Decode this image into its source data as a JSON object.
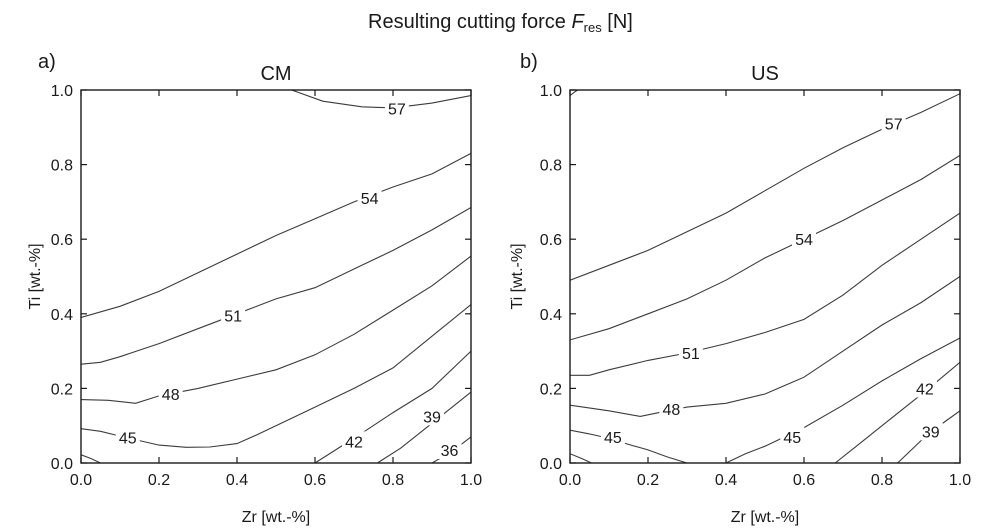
{
  "figure": {
    "title_main": "Resulting cutting force ",
    "title_symbol": "F",
    "title_subscript": "res",
    "title_unit": " [N]"
  },
  "chart_data": [
    {
      "type": "contour",
      "panel_letter": "a)",
      "title": "CM",
      "xlabel": "Zr [wt.-%]",
      "ylabel": "Ti [wt.-%]",
      "xlim": [
        0,
        1
      ],
      "ylim": [
        0,
        1
      ],
      "xticks": [
        "0.0",
        "0.2",
        "0.4",
        "0.6",
        "0.8",
        "1.0"
      ],
      "yticks": [
        "0.0",
        "0.2",
        "0.4",
        "0.6",
        "0.8",
        "1.0"
      ],
      "grid": false,
      "contours": [
        {
          "level": 57,
          "label": "57",
          "label_at": [
            0.81,
            0.95
          ],
          "points": [
            [
              0.54,
              1.0
            ],
            [
              0.62,
              0.97
            ],
            [
              0.72,
              0.955
            ],
            [
              0.8,
              0.952
            ],
            [
              0.9,
              0.965
            ],
            [
              1.0,
              0.985
            ]
          ]
        },
        {
          "level": 54,
          "label": "54",
          "label_at": [
            0.74,
            0.71
          ],
          "points": [
            [
              0.0,
              0.39
            ],
            [
              0.1,
              0.42
            ],
            [
              0.2,
              0.46
            ],
            [
              0.3,
              0.51
            ],
            [
              0.4,
              0.56
            ],
            [
              0.5,
              0.61
            ],
            [
              0.6,
              0.655
            ],
            [
              0.7,
              0.7
            ],
            [
              0.8,
              0.74
            ],
            [
              0.9,
              0.775
            ],
            [
              1.0,
              0.83
            ]
          ]
        },
        {
          "level": 51,
          "label": "51",
          "label_at": [
            0.39,
            0.395
          ],
          "points": [
            [
              0.0,
              0.265
            ],
            [
              0.05,
              0.27
            ],
            [
              0.1,
              0.285
            ],
            [
              0.2,
              0.32
            ],
            [
              0.3,
              0.36
            ],
            [
              0.4,
              0.4
            ],
            [
              0.5,
              0.44
            ],
            [
              0.6,
              0.47
            ],
            [
              0.7,
              0.52
            ],
            [
              0.8,
              0.57
            ],
            [
              0.9,
              0.625
            ],
            [
              1.0,
              0.685
            ]
          ]
        },
        {
          "level": 48,
          "label": "48",
          "label_at": [
            0.23,
            0.185
          ],
          "points": [
            [
              0.0,
              0.17
            ],
            [
              0.07,
              0.168
            ],
            [
              0.14,
              0.16
            ],
            [
              0.2,
              0.18
            ],
            [
              0.3,
              0.2
            ],
            [
              0.4,
              0.225
            ],
            [
              0.5,
              0.25
            ],
            [
              0.6,
              0.29
            ],
            [
              0.7,
              0.345
            ],
            [
              0.8,
              0.41
            ],
            [
              0.9,
              0.475
            ],
            [
              1.0,
              0.555
            ]
          ]
        },
        {
          "level": 45,
          "label": "45",
          "label_at": [
            0.12,
            0.068
          ],
          "points": [
            [
              0.0,
              0.092
            ],
            [
              0.05,
              0.085
            ],
            [
              0.1,
              0.072
            ],
            [
              0.15,
              0.06
            ],
            [
              0.2,
              0.048
            ],
            [
              0.27,
              0.042
            ],
            [
              0.33,
              0.043
            ],
            [
              0.4,
              0.052
            ],
            [
              0.45,
              0.075
            ],
            [
              0.52,
              0.11
            ],
            [
              0.6,
              0.15
            ],
            [
              0.7,
              0.2
            ],
            [
              0.8,
              0.255
            ],
            [
              0.9,
              0.34
            ],
            [
              1.0,
              0.425
            ]
          ]
        },
        {
          "level": 42,
          "label": "42",
          "label_at": [
            0.7,
            0.058
          ],
          "points": [
            [
              0.6,
              0.0
            ],
            [
              0.66,
              0.04
            ],
            [
              0.72,
              0.08
            ],
            [
              0.8,
              0.135
            ],
            [
              0.9,
              0.2
            ],
            [
              1.0,
              0.3
            ]
          ]
        },
        {
          "level": 39,
          "label": "39",
          "label_at": [
            0.9,
            0.125
          ],
          "points": [
            [
              0.76,
              0.0
            ],
            [
              0.82,
              0.04
            ],
            [
              0.88,
              0.09
            ],
            [
              0.94,
              0.14
            ],
            [
              1.0,
              0.19
            ]
          ]
        },
        {
          "level": 36,
          "label": "36",
          "label_at": [
            0.945,
            0.035
          ],
          "points": [
            [
              0.9,
              0.0
            ],
            [
              0.95,
              0.03
            ],
            [
              1.0,
              0.07
            ]
          ]
        },
        {
          "level": 42,
          "label": "",
          "points": [
            [
              0.0,
              0.022
            ],
            [
              0.025,
              0.012
            ],
            [
              0.05,
              0.0
            ]
          ]
        }
      ]
    },
    {
      "type": "contour",
      "panel_letter": "b)",
      "title": "US",
      "xlabel": "Zr [wt.-%]",
      "ylabel": "Ti [wt.-%]",
      "xlim": [
        0,
        1
      ],
      "ylim": [
        0,
        1
      ],
      "xticks": [
        "0.0",
        "0.2",
        "0.4",
        "0.6",
        "0.8",
        "1.0"
      ],
      "yticks": [
        "0.0",
        "0.2",
        "0.4",
        "0.6",
        "0.8",
        "1.0"
      ],
      "grid": false,
      "contours": [
        {
          "level": 57,
          "label": "57",
          "label_at": [
            0.83,
            0.91
          ],
          "points": [
            [
              0.0,
              0.49
            ],
            [
              0.1,
              0.53
            ],
            [
              0.2,
              0.57
            ],
            [
              0.3,
              0.62
            ],
            [
              0.4,
              0.67
            ],
            [
              0.5,
              0.73
            ],
            [
              0.6,
              0.79
            ],
            [
              0.7,
              0.845
            ],
            [
              0.8,
              0.895
            ],
            [
              0.9,
              0.94
            ],
            [
              1.0,
              0.99
            ]
          ]
        },
        {
          "level": 54,
          "label": "54",
          "label_at": [
            0.6,
            0.6
          ],
          "points": [
            [
              0.0,
              0.33
            ],
            [
              0.1,
              0.36
            ],
            [
              0.2,
              0.4
            ],
            [
              0.3,
              0.44
            ],
            [
              0.4,
              0.49
            ],
            [
              0.5,
              0.55
            ],
            [
              0.6,
              0.6
            ],
            [
              0.7,
              0.65
            ],
            [
              0.8,
              0.705
            ],
            [
              0.9,
              0.76
            ],
            [
              1.0,
              0.825
            ]
          ]
        },
        {
          "level": 51,
          "label": "51",
          "label_at": [
            0.31,
            0.295
          ],
          "points": [
            [
              0.0,
              0.235
            ],
            [
              0.05,
              0.235
            ],
            [
              0.1,
              0.25
            ],
            [
              0.2,
              0.275
            ],
            [
              0.3,
              0.295
            ],
            [
              0.4,
              0.32
            ],
            [
              0.5,
              0.35
            ],
            [
              0.6,
              0.385
            ],
            [
              0.7,
              0.45
            ],
            [
              0.8,
              0.53
            ],
            [
              0.9,
              0.6
            ],
            [
              1.0,
              0.67
            ]
          ]
        },
        {
          "level": 48,
          "label": "48",
          "label_at": [
            0.26,
            0.145
          ],
          "points": [
            [
              0.0,
              0.155
            ],
            [
              0.1,
              0.14
            ],
            [
              0.18,
              0.125
            ],
            [
              0.25,
              0.14
            ],
            [
              0.3,
              0.15
            ],
            [
              0.4,
              0.16
            ],
            [
              0.5,
              0.185
            ],
            [
              0.6,
              0.23
            ],
            [
              0.7,
              0.3
            ],
            [
              0.8,
              0.37
            ],
            [
              0.9,
              0.43
            ],
            [
              1.0,
              0.5
            ]
          ]
        },
        {
          "level": 45,
          "label": "45",
          "label_at": [
            0.57,
            0.07
          ],
          "points": [
            [
              0.4,
              0.0
            ],
            [
              0.45,
              0.025
            ],
            [
              0.5,
              0.045
            ],
            [
              0.6,
              0.095
            ],
            [
              0.7,
              0.155
            ],
            [
              0.8,
              0.22
            ],
            [
              0.9,
              0.28
            ],
            [
              1.0,
              0.335
            ]
          ]
        },
        {
          "level": 45,
          "label": "45",
          "label_at": [
            0.11,
            0.07
          ],
          "points": [
            [
              0.0,
              0.088
            ],
            [
              0.05,
              0.078
            ],
            [
              0.1,
              0.066
            ],
            [
              0.15,
              0.05
            ],
            [
              0.2,
              0.035
            ],
            [
              0.25,
              0.016
            ],
            [
              0.3,
              0.0
            ]
          ]
        },
        {
          "level": 42,
          "label": "42",
          "label_at": [
            0.91,
            0.2
          ],
          "points": [
            [
              0.68,
              0.0
            ],
            [
              0.74,
              0.05
            ],
            [
              0.8,
              0.1
            ],
            [
              0.86,
              0.15
            ],
            [
              0.92,
              0.2
            ],
            [
              1.0,
              0.27
            ]
          ]
        },
        {
          "level": 39,
          "label": "39",
          "label_at": [
            0.925,
            0.085
          ],
          "points": [
            [
              0.84,
              0.0
            ],
            [
              0.88,
              0.04
            ],
            [
              0.92,
              0.08
            ],
            [
              0.96,
              0.11
            ],
            [
              1.0,
              0.14
            ]
          ]
        },
        {
          "level": 48,
          "label": "",
          "points": [
            [
              0.0,
              0.025
            ],
            [
              0.03,
              0.012
            ],
            [
              0.055,
              0.0
            ]
          ]
        },
        {
          "level": 57,
          "label": "",
          "points": [
            [
              0.0,
              0.985
            ],
            [
              0.012,
              0.995
            ],
            [
              0.02,
              1.0
            ]
          ]
        }
      ]
    }
  ]
}
